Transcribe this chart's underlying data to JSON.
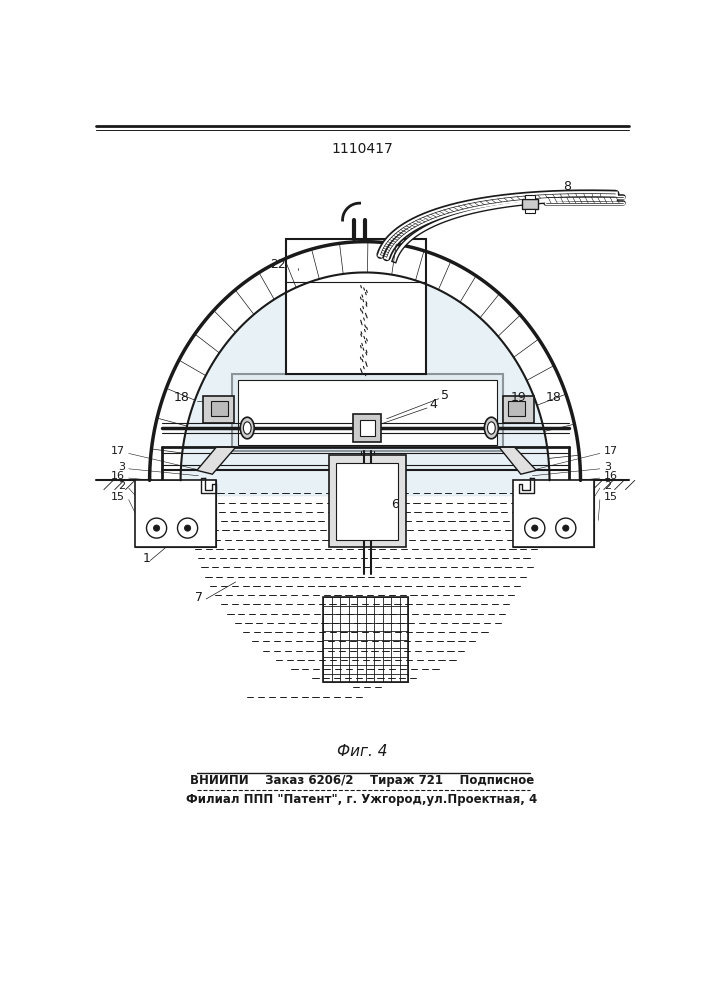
{
  "patent_number": "1110417",
  "figure_label": "Фиг. 4",
  "footer_line1": "ВНИИПИ    Заказ 6206/2    Тираж 721    Подписное",
  "footer_line2": "Филиал ППП \"Патент\", г. Ужгород,ул.Проектная, 4",
  "bg_color": "#ffffff",
  "line_color": "#1a1a1a"
}
